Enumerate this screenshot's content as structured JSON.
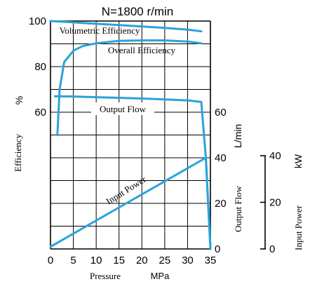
{
  "chart_data": {
    "type": "line",
    "title": "N=1800 r/min",
    "xlabel": "Pressure",
    "xunit": "MPa",
    "xlim": [
      0,
      35
    ],
    "x_ticks": [
      "0",
      "5",
      "10",
      "15",
      "20",
      "25",
      "30",
      "35"
    ],
    "left_axis": {
      "label": "Efficiency",
      "unit": "%",
      "ylim": [
        40,
        100
      ],
      "ticks": [
        "60",
        "80",
        "100"
      ]
    },
    "flow_axis": {
      "label": "Output Flow",
      "unit": "L/min",
      "ylim": [
        0,
        80
      ],
      "ticks": [
        "0",
        "20",
        "40",
        "60"
      ]
    },
    "power_axis": {
      "label": "Input Power",
      "unit": "kW",
      "ylim": [
        0,
        40
      ],
      "ticks": [
        "0",
        "20",
        "40"
      ]
    },
    "grid": true,
    "line_color": "#2aa3dc",
    "series": [
      {
        "name": "Volumetric Efficiency",
        "axis": "efficiency",
        "points": [
          [
            0,
            100
          ],
          [
            5,
            99.4
          ],
          [
            10,
            98.8
          ],
          [
            15,
            98.2
          ],
          [
            20,
            97.6
          ],
          [
            25,
            97.0
          ],
          [
            30,
            96.2
          ],
          [
            33,
            95.5
          ]
        ]
      },
      {
        "name": "Overall Efficiency",
        "axis": "efficiency",
        "points": [
          [
            1.5,
            50
          ],
          [
            2,
            70
          ],
          [
            3,
            82
          ],
          [
            5,
            87
          ],
          [
            7,
            89
          ],
          [
            10,
            90.2
          ],
          [
            15,
            91.3
          ],
          [
            20,
            91.5
          ],
          [
            25,
            91.5
          ],
          [
            30,
            91
          ],
          [
            33,
            90.2
          ]
        ]
      },
      {
        "name": "Output Flow",
        "axis": "flow",
        "points": [
          [
            1,
            67
          ],
          [
            5,
            66.9
          ],
          [
            10,
            66.6
          ],
          [
            15,
            66.3
          ],
          [
            20,
            66
          ],
          [
            25,
            65.6
          ],
          [
            30,
            65.2
          ],
          [
            33,
            64.5
          ],
          [
            34,
            40
          ],
          [
            35,
            0
          ]
        ]
      },
      {
        "name": "Input Power",
        "axis": "flow",
        "points": [
          [
            0,
            1
          ],
          [
            34,
            40
          ],
          [
            35,
            1
          ]
        ]
      }
    ]
  }
}
